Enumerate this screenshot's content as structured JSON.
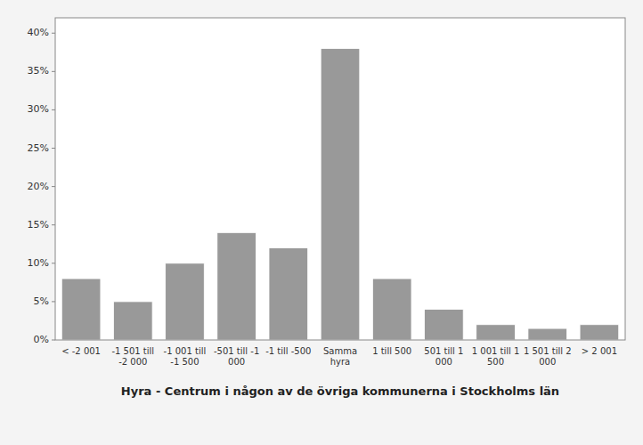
{
  "chart_data": {
    "type": "bar",
    "xlabel": "Hyra - Centrum i någon av de övriga kommunerna i Stockholms län",
    "categories": [
      "< -2 001",
      "-1 501 till\n-2 000",
      "-1 001 till\n-1 500",
      "-501 till -1\n000",
      "-1 till -500",
      "Samma\nhyra",
      "1 till 500",
      "501 till 1\n000",
      "1 001 till 1\n500",
      "1 501 till 2\n000",
      "> 2 001"
    ],
    "values": [
      0.08,
      0.05,
      0.1,
      0.14,
      0.12,
      0.38,
      0.08,
      0.04,
      0.02,
      0.015,
      0.02
    ],
    "color": "#999999",
    "ylim": [
      0,
      0.42
    ],
    "yticks": [
      {
        "value": 0.0,
        "label": "0%"
      },
      {
        "value": 0.05,
        "label": "5%"
      },
      {
        "value": 0.1,
        "label": "10%"
      },
      {
        "value": 0.15,
        "label": "15%"
      },
      {
        "value": 0.2,
        "label": "20%"
      },
      {
        "value": 0.25,
        "label": "25%"
      },
      {
        "value": 0.3,
        "label": "30%"
      },
      {
        "value": 0.35,
        "label": "35%"
      },
      {
        "value": 0.4,
        "label": "40%"
      }
    ],
    "grid": false
  }
}
